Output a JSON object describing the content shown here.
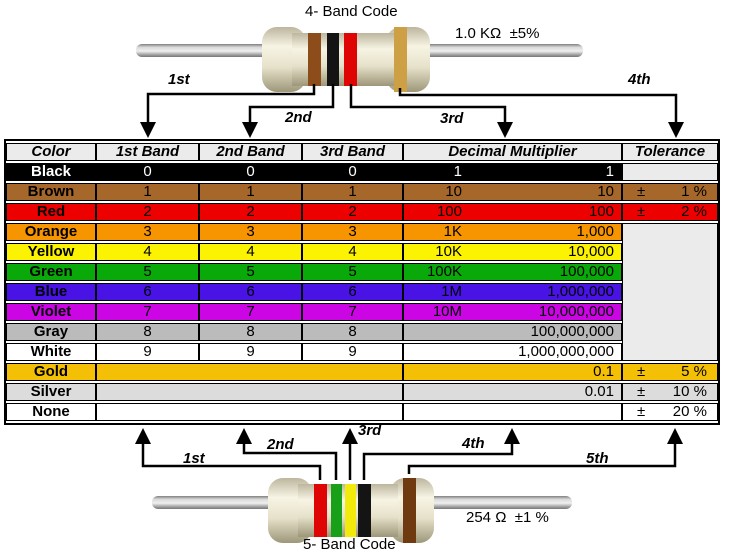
{
  "top": {
    "title": "4- Band Code",
    "value_label": "1.0 KΩ  ±5%",
    "band_labels": [
      "1st",
      "2nd",
      "3rd",
      "4th"
    ]
  },
  "bottom": {
    "title": "5- Band Code",
    "value_label": "254 Ω  ±1 %",
    "band_labels": [
      "1st",
      "2nd",
      "3rd",
      "4th",
      "5th"
    ]
  },
  "resistors": {
    "top": {
      "bands": [
        {
          "color": "brown",
          "hex": "#8C4D1B"
        },
        {
          "color": "black",
          "hex": "#141414"
        },
        {
          "color": "red",
          "hex": "#E00505"
        },
        {
          "color": "gold",
          "hex": "#CDA045"
        }
      ]
    },
    "bottom": {
      "bands": [
        {
          "color": "red",
          "hex": "#E00505"
        },
        {
          "color": "green",
          "hex": "#18A018"
        },
        {
          "color": "yellow",
          "hex": "#F2EA0A"
        },
        {
          "color": "black",
          "hex": "#141414"
        },
        {
          "color": "brown",
          "hex": "#703A10"
        }
      ]
    }
  },
  "colors": {
    "header_bg": "#EBEBEB",
    "merged_tolerance_bg": "#EBEBEB",
    "table_border": "#000000"
  },
  "table": {
    "columns": [
      "Color",
      "1st Band",
      "2nd Band",
      "3rd Band",
      "Decimal Multiplier",
      "Tolerance"
    ],
    "rows": [
      {
        "name": "Black",
        "bg": "#000000",
        "fg": "#FFFFFF",
        "bands": [
          "0",
          "0",
          "0"
        ],
        "mult_abbr": "1",
        "mult_value": "1",
        "tol": {
          "type": "empty",
          "bg": "#EBEBEB"
        }
      },
      {
        "name": "Brown",
        "bg": "#A5682A",
        "fg": "#000000",
        "bands": [
          "1",
          "1",
          "1"
        ],
        "mult_abbr": "10",
        "mult_value": "10",
        "tol": {
          "type": "value",
          "sign": "±",
          "text": "1 %",
          "bg": "#A5682A"
        }
      },
      {
        "name": "Red",
        "bg": "#EC0000",
        "fg": "#000000",
        "bands": [
          "2",
          "2",
          "2"
        ],
        "mult_abbr": "100",
        "mult_value": "100",
        "tol": {
          "type": "value",
          "sign": "±",
          "text": "2 %",
          "bg": "#EC0000"
        }
      },
      {
        "name": "Orange",
        "bg": "#F79500",
        "fg": "#000000",
        "bands": [
          "3",
          "3",
          "3"
        ],
        "mult_abbr": "1K",
        "mult_value": "1,000",
        "tol": {
          "type": "merged",
          "span": 7,
          "bg": "#EBEBEB"
        }
      },
      {
        "name": "Yellow",
        "bg": "#FCF302",
        "fg": "#000000",
        "bands": [
          "4",
          "4",
          "4"
        ],
        "mult_abbr": "10K",
        "mult_value": "10,000",
        "tol": {
          "type": "none"
        }
      },
      {
        "name": "Green",
        "bg": "#09A909",
        "fg": "#000000",
        "bands": [
          "5",
          "5",
          "5"
        ],
        "mult_abbr": "100K",
        "mult_value": "100,000",
        "tol": {
          "type": "none"
        }
      },
      {
        "name": "Blue",
        "bg": "#4A13E6",
        "fg": "#000000",
        "bands": [
          "6",
          "6",
          "6"
        ],
        "mult_abbr": "1M",
        "mult_value": "1,000,000",
        "tol": {
          "type": "none"
        }
      },
      {
        "name": "Violet",
        "bg": "#CB05E4",
        "fg": "#000000",
        "bands": [
          "7",
          "7",
          "7"
        ],
        "mult_abbr": "10M",
        "mult_value": "10,000,000",
        "tol": {
          "type": "none"
        }
      },
      {
        "name": "Gray",
        "bg": "#BBBBBB",
        "fg": "#000000",
        "bands": [
          "8",
          "8",
          "8"
        ],
        "mult_abbr": "",
        "mult_value": "100,000,000",
        "tol": {
          "type": "none"
        }
      },
      {
        "name": "White",
        "bg": "#FFFFFF",
        "fg": "#000000",
        "bands": [
          "9",
          "9",
          "9"
        ],
        "mult_abbr": "",
        "mult_value": "1,000,000,000",
        "tol": {
          "type": "none"
        }
      },
      {
        "name": "Gold",
        "bg": "#F4C005",
        "fg": "#000000",
        "merged_bands": true,
        "mult_abbr": "",
        "mult_value": "0.1",
        "tol": {
          "type": "value",
          "sign": "±",
          "text": "5 %",
          "bg": "#F4C005"
        }
      },
      {
        "name": "Silver",
        "bg": "#DCDCDC",
        "fg": "#000000",
        "merged_bands": true,
        "mult_abbr": "",
        "mult_value": "0.01",
        "tol": {
          "type": "value",
          "sign": "±",
          "text": "10 %",
          "bg": "#DCDCDC"
        }
      },
      {
        "name": "None",
        "bg": "#FFFFFF",
        "fg": "#000000",
        "merged_bands": true,
        "mult_abbr": "",
        "mult_value": "",
        "tol": {
          "type": "value",
          "sign": "±",
          "text": "20 %",
          "bg": "#FFFFFF"
        }
      }
    ]
  }
}
